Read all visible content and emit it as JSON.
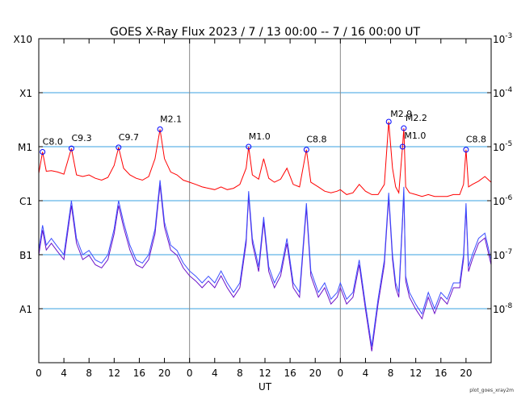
{
  "chart_data": {
    "type": "line",
    "title": "GOES X-Ray Flux   2023  /  7  /  13    00:00 --  7  /  16    00:00    UT",
    "xlabel": "UT",
    "credit": "plot_goes_xray2m",
    "x_range_hours": [
      0,
      72
    ],
    "x_tick_labels": [
      "0",
      "4",
      "8",
      "12",
      "16",
      "20",
      "0",
      "4",
      "8",
      "12",
      "16",
      "20",
      "0",
      "4",
      "8",
      "12",
      "16",
      "20"
    ],
    "x_tick_hours": [
      0,
      4,
      8,
      12,
      16,
      20,
      24,
      28,
      32,
      36,
      40,
      44,
      48,
      52,
      56,
      60,
      64,
      68
    ],
    "day_boundaries_hours": [
      24,
      48
    ],
    "y_scale": "log",
    "y_range_w_m2": [
      1e-09,
      0.001
    ],
    "y_left_labels": [
      {
        "label": "X10",
        "value": 0.001
      },
      {
        "label": "X1",
        "value": 0.0001
      },
      {
        "label": "M1",
        "value": 1e-05
      },
      {
        "label": "C1",
        "value": 1e-06
      },
      {
        "label": "B1",
        "value": 1e-07
      },
      {
        "label": "A1",
        "value": 1e-08
      }
    ],
    "y_right_labels": [
      {
        "mantissa": "10",
        "exponent": "-3",
        "value": 0.001
      },
      {
        "mantissa": "10",
        "exponent": "-4",
        "value": 0.0001
      },
      {
        "mantissa": "10",
        "exponent": "-5",
        "value": 1e-05
      },
      {
        "mantissa": "10",
        "exponent": "-6",
        "value": 1e-06
      },
      {
        "mantissa": "10",
        "exponent": "-7",
        "value": 1e-07
      },
      {
        "mantissa": "10",
        "exponent": "-8",
        "value": 1e-08
      }
    ],
    "grid_levels": [
      0.0001,
      1e-05,
      1e-06,
      1e-07,
      1e-08
    ],
    "colors": {
      "long_channel": "#ff0000",
      "short_channel_primary": "#3a4dff",
      "short_channel_secondary": "#6a10c8",
      "grid": "#3aa0e0",
      "day_divider": "#888888",
      "flare_marker": "#0000ff"
    },
    "flares": [
      {
        "label": "C8.0",
        "hour": 0.6,
        "flux": 8e-06
      },
      {
        "label": "C9.3",
        "hour": 5.2,
        "flux": 9.3e-06
      },
      {
        "label": "C9.7",
        "hour": 12.7,
        "flux": 9.7e-06
      },
      {
        "label": "M2.1",
        "hour": 19.3,
        "flux": 2.1e-05
      },
      {
        "label": "M1.0",
        "hour": 33.4,
        "flux": 1e-05
      },
      {
        "label": "C8.8",
        "hour": 42.6,
        "flux": 8.8e-06
      },
      {
        "label": "M2.9",
        "hour": 55.7,
        "flux": 2.9e-05
      },
      {
        "label": "M2.2",
        "hour": 58.1,
        "flux": 2.2e-05
      },
      {
        "label": "M1.0",
        "hour": 57.9,
        "flux": 1e-05
      },
      {
        "label": "C8.8",
        "hour": 68.0,
        "flux": 8.8e-06
      }
    ],
    "series": [
      {
        "channel": "long",
        "points": [
          [
            0,
            3.2e-06
          ],
          [
            0.6,
            8e-06
          ],
          [
            1.2,
            3.5e-06
          ],
          [
            2,
            3.6e-06
          ],
          [
            3,
            3.4e-06
          ],
          [
            4,
            3.1e-06
          ],
          [
            5.2,
            9.3e-06
          ],
          [
            6,
            3e-06
          ],
          [
            7,
            2.8e-06
          ],
          [
            8,
            3e-06
          ],
          [
            9,
            2.6e-06
          ],
          [
            10,
            2.4e-06
          ],
          [
            11,
            2.7e-06
          ],
          [
            12,
            4.5e-06
          ],
          [
            12.7,
            9.7e-06
          ],
          [
            13.5,
            4e-06
          ],
          [
            14.5,
            3e-06
          ],
          [
            15.5,
            2.6e-06
          ],
          [
            16.5,
            2.4e-06
          ],
          [
            17.5,
            2.8e-06
          ],
          [
            18.5,
            6e-06
          ],
          [
            19.3,
            2.1e-05
          ],
          [
            20,
            6e-06
          ],
          [
            21,
            3.4e-06
          ],
          [
            22,
            3e-06
          ],
          [
            23,
            2.4e-06
          ],
          [
            24,
            2.2e-06
          ],
          [
            25,
            2e-06
          ],
          [
            26,
            1.8e-06
          ],
          [
            27,
            1.7e-06
          ],
          [
            28,
            1.6e-06
          ],
          [
            29,
            1.8e-06
          ],
          [
            30,
            1.6e-06
          ],
          [
            31,
            1.7e-06
          ],
          [
            32,
            2e-06
          ],
          [
            33,
            4e-06
          ],
          [
            33.4,
            1e-05
          ],
          [
            34,
            3e-06
          ],
          [
            35,
            2.5e-06
          ],
          [
            35.8,
            6e-06
          ],
          [
            36.6,
            2.6e-06
          ],
          [
            37.5,
            2.2e-06
          ],
          [
            38.5,
            2.5e-06
          ],
          [
            39.5,
            4e-06
          ],
          [
            40.5,
            2e-06
          ],
          [
            41.5,
            1.8e-06
          ],
          [
            42.6,
            8.8e-06
          ],
          [
            43.3,
            2.2e-06
          ],
          [
            44.5,
            1.8e-06
          ],
          [
            45.5,
            1.5e-06
          ],
          [
            46.5,
            1.4e-06
          ],
          [
            47.5,
            1.5e-06
          ],
          [
            48,
            1.6e-06
          ],
          [
            49,
            1.3e-06
          ],
          [
            50,
            1.4e-06
          ],
          [
            51,
            2e-06
          ],
          [
            52,
            1.5e-06
          ],
          [
            53,
            1.3e-06
          ],
          [
            54,
            1.3e-06
          ],
          [
            55,
            2e-06
          ],
          [
            55.7,
            2.9e-05
          ],
          [
            56.3,
            4e-06
          ],
          [
            56.8,
            1.8e-06
          ],
          [
            57.3,
            1.4e-06
          ],
          [
            57.9,
            1e-05
          ],
          [
            58.1,
            2.2e-05
          ],
          [
            58.4,
            1.8e-06
          ],
          [
            59,
            1.4e-06
          ],
          [
            60,
            1.3e-06
          ],
          [
            61,
            1.2e-06
          ],
          [
            62,
            1.3e-06
          ],
          [
            63,
            1.2e-06
          ],
          [
            64,
            1.2e-06
          ],
          [
            65,
            1.2e-06
          ],
          [
            66,
            1.3e-06
          ],
          [
            67,
            1.3e-06
          ],
          [
            67.6,
            2e-06
          ],
          [
            68,
            8.8e-06
          ],
          [
            68.4,
            1.8e-06
          ],
          [
            69,
            2e-06
          ],
          [
            70,
            2.3e-06
          ],
          [
            71,
            2.8e-06
          ],
          [
            72,
            2.2e-06
          ]
        ]
      },
      {
        "channel": "short",
        "points": [
          [
            0,
            1.2e-07
          ],
          [
            0.6,
            3.5e-07
          ],
          [
            1.2,
            1.5e-07
          ],
          [
            2,
            2e-07
          ],
          [
            3,
            1.4e-07
          ],
          [
            4,
            1e-07
          ],
          [
            5.2,
            1e-06
          ],
          [
            6,
            2e-07
          ],
          [
            7,
            1e-07
          ],
          [
            8,
            1.2e-07
          ],
          [
            9,
            8e-08
          ],
          [
            10,
            7e-08
          ],
          [
            11,
            1e-07
          ],
          [
            12,
            3e-07
          ],
          [
            12.7,
            1e-06
          ],
          [
            13.5,
            4e-07
          ],
          [
            14.5,
            1.5e-07
          ],
          [
            15.5,
            8e-08
          ],
          [
            16.5,
            7e-08
          ],
          [
            17.5,
            1e-07
          ],
          [
            18.5,
            3e-07
          ],
          [
            19.3,
            2.4e-06
          ],
          [
            20,
            4e-07
          ],
          [
            21,
            1.5e-07
          ],
          [
            22,
            1.2e-07
          ],
          [
            23,
            7e-08
          ],
          [
            24,
            5e-08
          ],
          [
            25,
            4e-08
          ],
          [
            26,
            3e-08
          ],
          [
            27,
            4e-08
          ],
          [
            28,
            3e-08
          ],
          [
            29,
            5e-08
          ],
          [
            30,
            3e-08
          ],
          [
            31,
            2e-08
          ],
          [
            32,
            3e-08
          ],
          [
            33,
            2e-07
          ],
          [
            33.4,
            1.5e-06
          ],
          [
            34,
            2e-07
          ],
          [
            35,
            6e-08
          ],
          [
            35.8,
            5e-07
          ],
          [
            36.6,
            6e-08
          ],
          [
            37.5,
            3e-08
          ],
          [
            38.5,
            5e-08
          ],
          [
            39.5,
            2e-07
          ],
          [
            40.5,
            3e-08
          ],
          [
            41.5,
            2e-08
          ],
          [
            42.6,
            9e-07
          ],
          [
            43.3,
            5e-08
          ],
          [
            44.5,
            2e-08
          ],
          [
            45.5,
            3e-08
          ],
          [
            46.5,
            1.5e-08
          ],
          [
            47.5,
            2e-08
          ],
          [
            48,
            3e-08
          ],
          [
            49,
            1.5e-08
          ],
          [
            50,
            2e-08
          ],
          [
            51,
            8e-08
          ],
          [
            52,
            1.2e-08
          ],
          [
            53,
            2e-09
          ],
          [
            54,
            1.5e-08
          ],
          [
            55,
            8e-08
          ],
          [
            55.7,
            1.4e-06
          ],
          [
            56.3,
            1e-07
          ],
          [
            56.8,
            3e-08
          ],
          [
            57.3,
            2e-08
          ],
          [
            57.9,
            5e-07
          ],
          [
            58.1,
            1.8e-06
          ],
          [
            58.4,
            4e-08
          ],
          [
            59,
            2e-08
          ],
          [
            60,
            1.2e-08
          ],
          [
            61,
            8e-09
          ],
          [
            62,
            2e-08
          ],
          [
            63,
            1e-08
          ],
          [
            64,
            2e-08
          ],
          [
            65,
            1.5e-08
          ],
          [
            66,
            3e-08
          ],
          [
            67,
            3e-08
          ],
          [
            67.6,
            1e-07
          ],
          [
            68,
            9e-07
          ],
          [
            68.4,
            6e-08
          ],
          [
            69,
            1e-07
          ],
          [
            70,
            2e-07
          ],
          [
            71,
            2.5e-07
          ],
          [
            72,
            8e-08
          ]
        ]
      }
    ]
  }
}
